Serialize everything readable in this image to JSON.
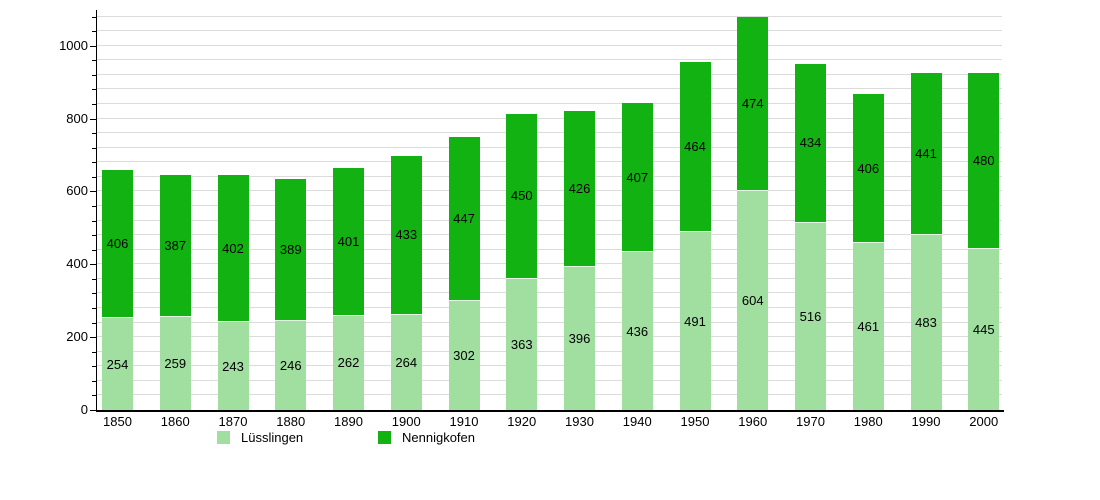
{
  "chart_data": {
    "type": "bar",
    "stacked": true,
    "title": "",
    "xlabel": "",
    "ylabel": "",
    "categories": [
      "1850",
      "1860",
      "1870",
      "1880",
      "1890",
      "1900",
      "1910",
      "1920",
      "1930",
      "1940",
      "1950",
      "1960",
      "1970",
      "1980",
      "1990",
      "2000"
    ],
    "series": [
      {
        "name": "Lüsslingen",
        "color": "#a0dfa0",
        "values": [
          254,
          259,
          243,
          246,
          262,
          264,
          302,
          363,
          396,
          436,
          491,
          604,
          516,
          461,
          483,
          445
        ]
      },
      {
        "name": "Nennigkofen",
        "color": "#12b212",
        "values": [
          406,
          387,
          402,
          389,
          401,
          433,
          447,
          450,
          426,
          407,
          464,
          474,
          434,
          406,
          441,
          480
        ]
      }
    ],
    "totals": [
      660,
      646,
      645,
      635,
      663,
      697,
      749,
      813,
      822,
      843,
      955,
      1078,
      950,
      867,
      924,
      925
    ],
    "ylim": [
      0,
      1096
    ],
    "y_major_ticks": [
      0,
      200,
      400,
      600,
      800,
      1000
    ],
    "y_minor_interval": 40,
    "grid": true,
    "gridline_color": "#dcdcdc",
    "axis_color": "#000000",
    "label_color": "#000000",
    "legend_position": "bottom",
    "legend_entries": [
      "Lüsslingen",
      "Nennigkofen"
    ]
  }
}
